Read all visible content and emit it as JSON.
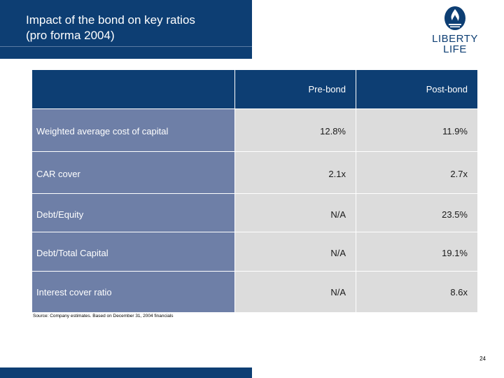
{
  "title": {
    "line1": "Impact of the bond on key ratios",
    "line2": "(pro forma 2004)"
  },
  "logo": {
    "line1": "LIBERTY",
    "line2": "LIFE",
    "color": "#0d3e73"
  },
  "table": {
    "headers": [
      "",
      "Pre-bond",
      "Post-bond"
    ],
    "rows": [
      {
        "label": "Weighted average cost of capital",
        "pre": "12.8%",
        "post": "11.9%"
      },
      {
        "label": "CAR cover",
        "pre": "2.1x",
        "post": "2.7x"
      },
      {
        "label": "Debt/Equity",
        "pre": "N/A",
        "post": "23.5%"
      },
      {
        "label": "Debt/Total Capital",
        "pre": "N/A",
        "post": "19.1%"
      },
      {
        "label": "Interest cover ratio",
        "pre": "N/A",
        "post": "8.6x"
      }
    ]
  },
  "source": "Source: Company estimates. Based on December 31, 2004 financials",
  "page_number": "24",
  "colors": {
    "navy": "#0d3e73",
    "label_fill": "#6e7fa7",
    "value_fill": "#dcdcdc"
  }
}
